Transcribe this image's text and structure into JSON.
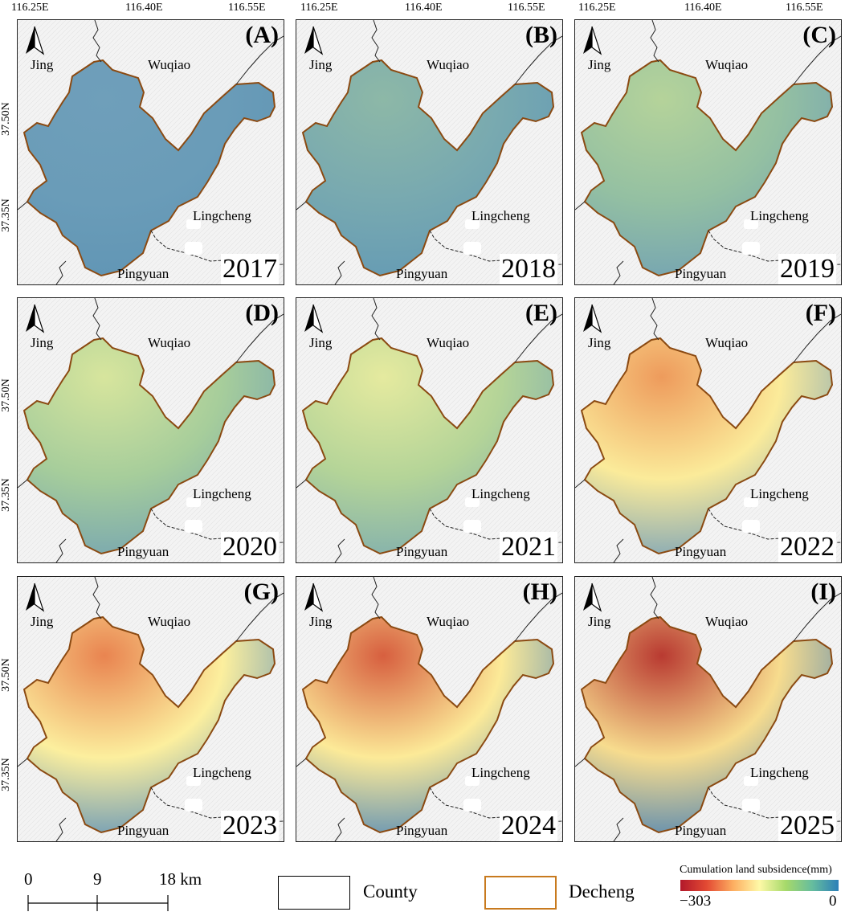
{
  "top_lon_labels": [
    "116.25E",
    "116.40E",
    "116.55E"
  ],
  "left_lat_labels": [
    "37.50N",
    "37.35N"
  ],
  "place_names": {
    "jing": "Jing",
    "wuqiao": "Wuqiao",
    "lingcheng": "Lingcheng",
    "pingyuan": "Pingyuan"
  },
  "panels": [
    {
      "letter": "(A)",
      "year": "2017",
      "subsidence_pattern": "uniform-blue"
    },
    {
      "letter": "(B)",
      "year": "2018",
      "subsidence_pattern": "blue-green"
    },
    {
      "letter": "(C)",
      "year": "2019",
      "subsidence_pattern": "green"
    },
    {
      "letter": "(D)",
      "year": "2020",
      "subsidence_pattern": "green-yellow"
    },
    {
      "letter": "(E)",
      "year": "2021",
      "subsidence_pattern": "yellow-green"
    },
    {
      "letter": "(F)",
      "year": "2022",
      "subsidence_pattern": "orange-north"
    },
    {
      "letter": "(G)",
      "year": "2023",
      "subsidence_pattern": "orange-red-north"
    },
    {
      "letter": "(H)",
      "year": "2024",
      "subsidence_pattern": "red-north"
    },
    {
      "letter": "(I)",
      "year": "2025",
      "subsidence_pattern": "dark-red-north"
    }
  ],
  "scale_bar": {
    "labels": [
      "0",
      "9",
      "18 km"
    ]
  },
  "legend": {
    "county_label": "County",
    "decheng_label": "Decheng",
    "county_color": "#000000",
    "decheng_color": "#c87a1e"
  },
  "colorbar": {
    "title": "Cumulation land subsidence(mm)",
    "min_label": "−303",
    "max_label": "0",
    "colors": [
      "#b2182b",
      "#fdae61",
      "#fef9a7",
      "#66bd9e",
      "#2c7fb8"
    ]
  }
}
